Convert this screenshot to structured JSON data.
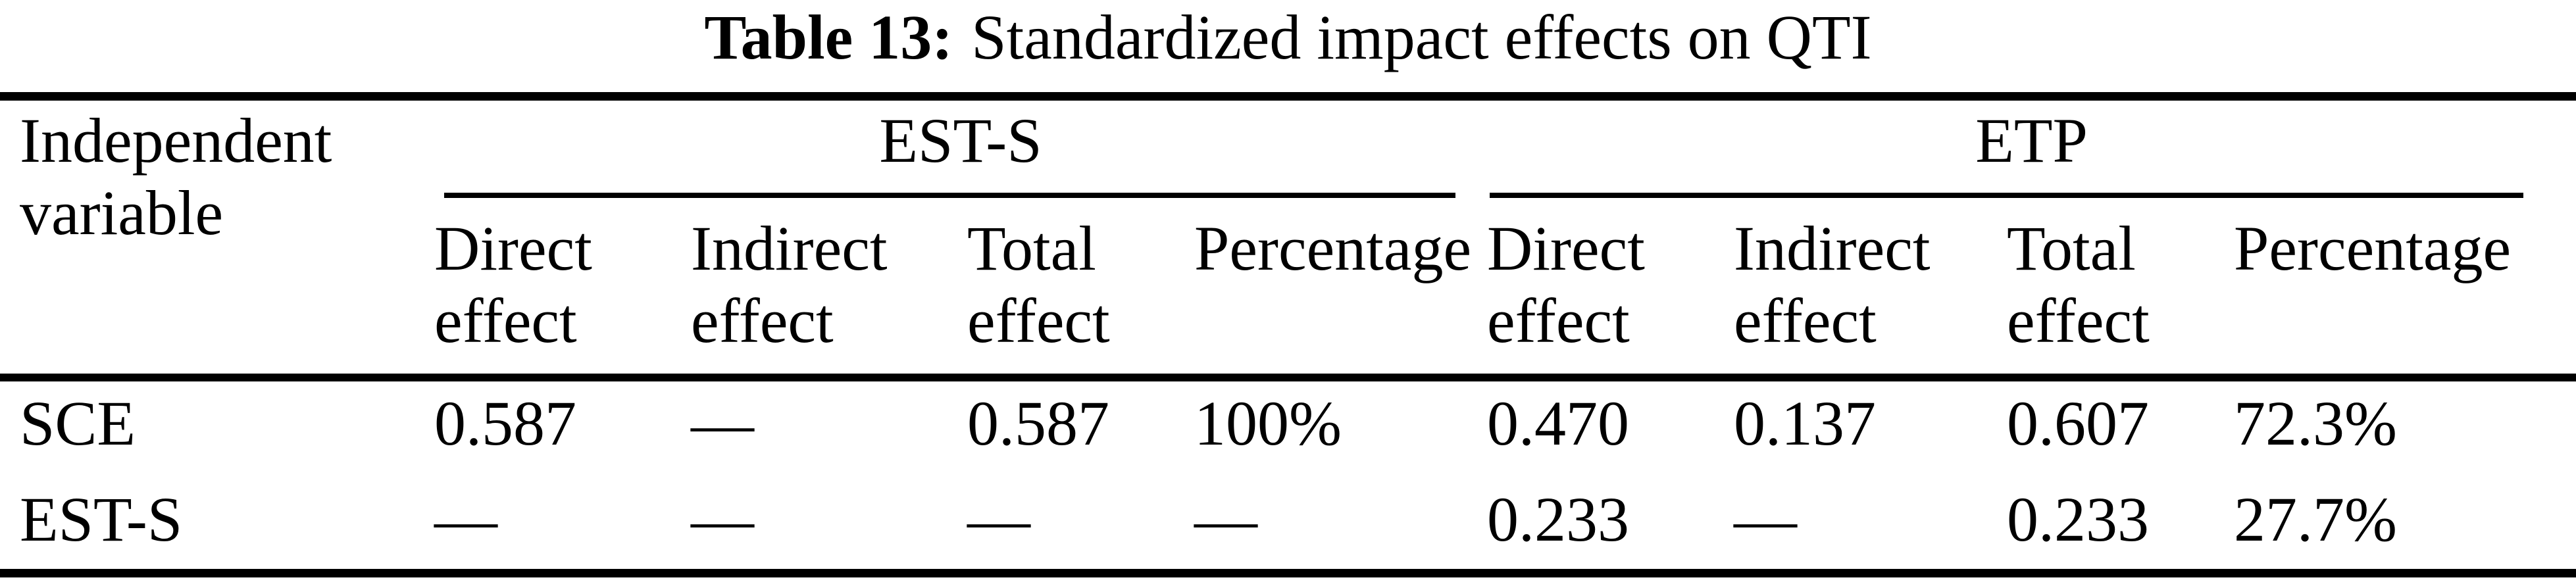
{
  "caption": {
    "label": "Table 13:",
    "text": "Standardized impact effects on QTI"
  },
  "colors": {
    "text": "#000000",
    "background": "#ffffff",
    "rule": "#000000"
  },
  "table": {
    "stub_header": "Independent variable",
    "groups": [
      {
        "label": "EST-S"
      },
      {
        "label": "ETP"
      }
    ],
    "sub_headers": [
      "Direct effect",
      "Indirect effect",
      "Total effect",
      "Percentage",
      "Direct effect",
      "Indirect effect",
      "Total effect",
      "Percentage"
    ],
    "rows": [
      {
        "variable": "SCE",
        "cells": [
          "0.587",
          "—",
          "0.587",
          "100%",
          "0.470",
          "0.137",
          "0.607",
          "72.3%"
        ]
      },
      {
        "variable": "EST-S",
        "cells": [
          "—",
          "—",
          "—",
          "—",
          "0.233",
          "—",
          "0.233",
          "27.7%"
        ]
      }
    ]
  }
}
